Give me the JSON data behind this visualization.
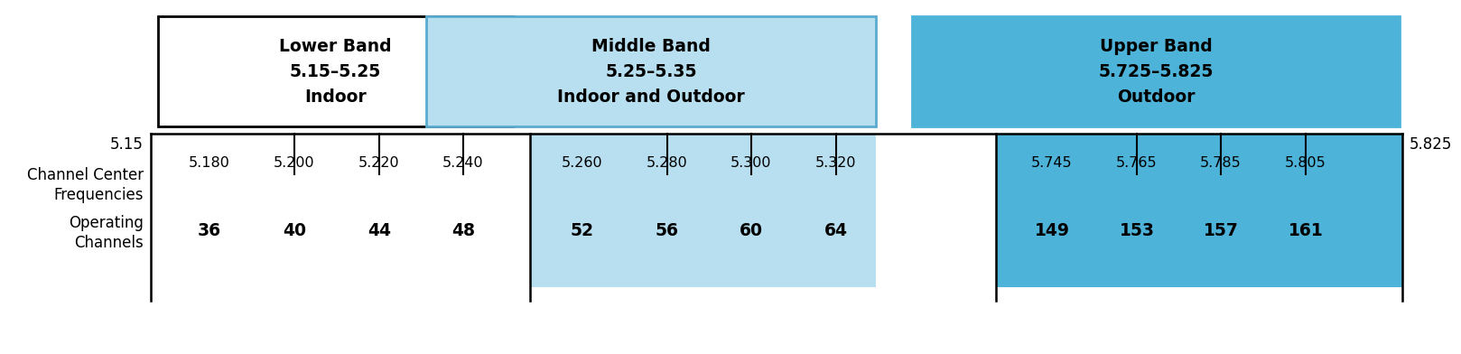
{
  "lower_band": {
    "label": "Lower Band\n5.15–5.25\nIndoor",
    "box_facecolor": "#ffffff",
    "box_edgecolor": "#000000",
    "row_facecolor": "#ffffff",
    "channels": [
      "36",
      "40",
      "44",
      "48"
    ],
    "frequencies": [
      "5.180",
      "5.200",
      "5.220",
      "5.240"
    ]
  },
  "middle_band": {
    "label": "Middle Band\n5.25–5.35\nIndoor and Outdoor",
    "box_facecolor": "#b8dff0",
    "box_edgecolor": "#5aabcf",
    "row_facecolor": "#b8dff0",
    "channels": [
      "52",
      "56",
      "60",
      "64"
    ],
    "frequencies": [
      "5.260",
      "5.280",
      "5.300",
      "5.320"
    ]
  },
  "upper_band": {
    "label": "Upper Band\n5.725–5.825\nOutdoor",
    "box_facecolor": "#4db3d9",
    "box_edgecolor": "#4db3d9",
    "row_facecolor": "#4db3d9",
    "channels": [
      "149",
      "153",
      "157",
      "161"
    ],
    "frequencies": [
      "5.745",
      "5.765",
      "5.785",
      "5.805"
    ]
  },
  "label_515": "5.15",
  "label_5825": "5.825",
  "label_ccf": "Channel Center\nFrequencies",
  "label_oc": "Operating\nChannels",
  "bg_color": "#ffffff",
  "fig_width": 15.78,
  "fig_height": 3.72,
  "dpi": 100
}
